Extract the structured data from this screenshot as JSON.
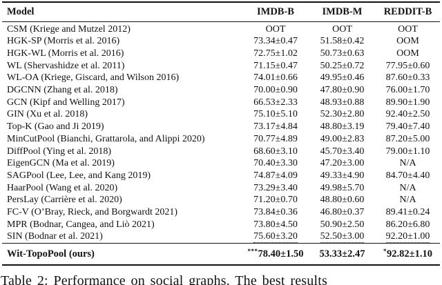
{
  "page": {
    "background": "#ffffff",
    "text_color": "#111111"
  },
  "table": {
    "columns": [
      {
        "label": "Model"
      },
      {
        "label": "IMDB-B"
      },
      {
        "label": "IMDB-M"
      },
      {
        "label": "REDDIT-B"
      }
    ],
    "rows": [
      {
        "model": "CSM (Kriege and Mutzel 2012)",
        "values": [
          "OOT",
          "OOT",
          "OOT"
        ]
      },
      {
        "model": "HGK-SP (Morris et al. 2016)",
        "values": [
          "73.34±0.47",
          "51.58±0.42",
          "OOM"
        ]
      },
      {
        "model": "HGK-WL (Morris et al. 2016)",
        "values": [
          "72.75±1.02",
          "50.73±0.63",
          "OOM"
        ]
      },
      {
        "model": "WL (Shervashidze et al. 2011)",
        "values": [
          "71.15±0.47",
          "50.25±0.72",
          "77.95±0.60"
        ]
      },
      {
        "model": "WL-OA (Kriege, Giscard, and Wilson 2016)",
        "values": [
          "74.01±0.66",
          "49.95±0.46",
          "87.60±0.33"
        ]
      },
      {
        "model": "DGCNN (Zhang et al. 2018)",
        "values": [
          "70.00±0.90",
          "47.80±0.90",
          "76.00±1.70"
        ]
      },
      {
        "model": "GCN (Kipf and Welling 2017)",
        "values": [
          "66.53±2.33",
          "48.93±0.88",
          "89.90±1.90"
        ]
      },
      {
        "model": "GIN (Xu et al. 2018)",
        "values": [
          "75.10±5.10",
          "52.30±2.80",
          "92.40±2.50"
        ]
      },
      {
        "model": "Top-K (Gao and Ji 2019)",
        "values": [
          "73.17±4.84",
          "48.80±3.19",
          "79.40±7.40"
        ]
      },
      {
        "model": "MinCutPool (Bianchi, Grattarola, and Alippi 2020)",
        "values": [
          "70.77±4.89",
          "49.00±2.83",
          "87.20±5.00"
        ]
      },
      {
        "model": "DiffPool (Ying et al. 2018)",
        "values": [
          "68.60±3.10",
          "45.70±3.40",
          "79.00±1.10"
        ]
      },
      {
        "model": "EigenGCN (Ma et al. 2019)",
        "values": [
          "70.40±3.30",
          "47.20±3.00",
          "N/A"
        ]
      },
      {
        "model": "SAGPool (Lee, Lee, and Kang 2019)",
        "values": [
          "74.87±4.09",
          "49.33±4.90",
          "84.70±4.40"
        ]
      },
      {
        "model": "HaarPool (Wang et al. 2020)",
        "values": [
          "73.29±3.40",
          "49.98±5.70",
          "N/A"
        ]
      },
      {
        "model": "PersLay (Carrière et al. 2020)",
        "values": [
          "71.20±0.70",
          "48.80±0.60",
          "N/A"
        ]
      },
      {
        "model": "FC-V (O’Bray, Rieck, and Borgwardt 2021)",
        "values": [
          "73.84±0.36",
          "46.80±0.37",
          "89.41±0.24"
        ]
      },
      {
        "model": "MPR (Bodnar, Cangea, and Liò 2021)",
        "values": [
          "73.80±4.50",
          "50.90±2.50",
          "86.20±6.80"
        ]
      },
      {
        "model": "SIN (Bodnar et al. 2021)",
        "values": [
          "75.60±3.20",
          "52.50±3.00",
          "92.20±1.00"
        ],
        "underline": "dotted"
      }
    ],
    "highlight_row": {
      "model": "Wit-TopoPool (ours)",
      "values": [
        {
          "sup": "***",
          "text": "78.40±1.50"
        },
        {
          "sup": "",
          "text": "53.33±2.47"
        },
        {
          "sup": "*",
          "text": "92.82±1.10"
        }
      ]
    }
  },
  "caption": "Table 2: Performance on social graphs. The best results"
}
